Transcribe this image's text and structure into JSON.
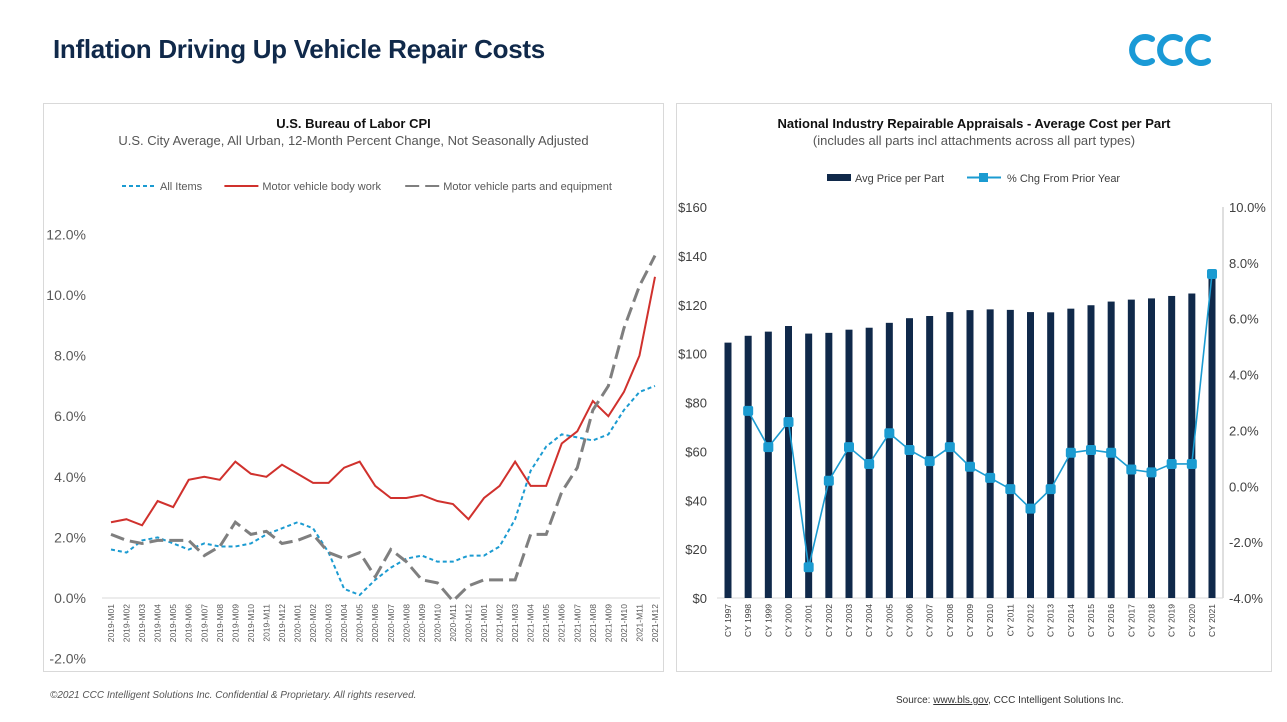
{
  "header": {
    "title": "Inflation Driving Up Vehicle Repair Costs",
    "logo_text": "CCC",
    "logo_color": "#1a9ad6"
  },
  "footer": {
    "copyright": "©2021 CCC Intelligent Solutions Inc. Confidential & Proprietary.  All rights reserved.",
    "source_label": "Source: ",
    "source_link": "www.bls.gov",
    "source_rest": ", CCC Intelligent Solutions Inc."
  },
  "chart_data": [
    {
      "type": "line",
      "title": "U.S. Bureau of Labor CPI",
      "subtitle": "U.S. City Average, All Urban, 12-Month Percent Change, Not Seasonally Adjusted",
      "legend_placement": "top",
      "ylim": [
        -2,
        12
      ],
      "yticks": [
        "-2.0%",
        "0.0%",
        "2.0%",
        "4.0%",
        "6.0%",
        "8.0%",
        "10.0%",
        "12.0%"
      ],
      "grid": false,
      "categories": [
        "2019-M01",
        "2019-M02",
        "2019-M03",
        "2019-M04",
        "2019-M05",
        "2019-M06",
        "2019-M07",
        "2019-M08",
        "2019-M09",
        "2019-M10",
        "2019-M11",
        "2019-M12",
        "2020-M01",
        "2020-M02",
        "2020-M03",
        "2020-M04",
        "2020-M05",
        "2020-M06",
        "2020-M07",
        "2020-M08",
        "2020-M09",
        "2020-M10",
        "2020-M11",
        "2020-M12",
        "2021-M01",
        "2021-M02",
        "2021-M03",
        "2021-M04",
        "2021-M05",
        "2021-M06",
        "2021-M07",
        "2021-M08",
        "2021-M09",
        "2021-M10",
        "2021-M11",
        "2021-M12"
      ],
      "series": [
        {
          "name": "All Items",
          "color": "#1b9bd1",
          "style": "dotted",
          "values": [
            1.6,
            1.5,
            1.9,
            2.0,
            1.8,
            1.6,
            1.8,
            1.7,
            1.7,
            1.8,
            2.1,
            2.3,
            2.5,
            2.3,
            1.5,
            0.3,
            0.1,
            0.6,
            1.0,
            1.3,
            1.4,
            1.2,
            1.2,
            1.4,
            1.4,
            1.7,
            2.6,
            4.2,
            5.0,
            5.4,
            5.3,
            5.2,
            5.4,
            6.2,
            6.8,
            7.0
          ]
        },
        {
          "name": "Motor vehicle body work",
          "color": "#d0312d",
          "style": "solid",
          "values": [
            2.5,
            2.6,
            2.4,
            3.2,
            3.0,
            3.9,
            4.0,
            3.9,
            4.5,
            4.1,
            4.0,
            4.4,
            4.1,
            3.8,
            3.8,
            4.3,
            4.5,
            3.7,
            3.3,
            3.3,
            3.4,
            3.2,
            3.1,
            2.6,
            3.3,
            3.7,
            4.5,
            3.7,
            3.7,
            5.1,
            5.5,
            6.5,
            6.0,
            6.8,
            8.0,
            10.6
          ]
        },
        {
          "name": "Motor vehicle parts and equipment",
          "color": "#7f7f7f",
          "style": "dashed",
          "values": [
            2.1,
            1.9,
            1.8,
            1.9,
            1.9,
            1.9,
            1.4,
            1.7,
            2.5,
            2.1,
            2.2,
            1.8,
            1.9,
            2.1,
            1.5,
            1.3,
            1.5,
            0.7,
            1.6,
            1.2,
            0.6,
            0.5,
            -0.1,
            0.4,
            0.6,
            0.6,
            0.6,
            2.1,
            2.1,
            3.5,
            4.3,
            6.2,
            7.0,
            8.9,
            10.3,
            11.3
          ]
        }
      ]
    },
    {
      "type": "bar",
      "title": "National Industry Repairable Appraisals - Average Cost per Part",
      "subtitle": "(includes all parts incl attachments across all part types)",
      "legend_placement": "top",
      "grid": false,
      "ylim": [
        0,
        160
      ],
      "yticks": [
        "$0",
        "$20",
        "$40",
        "$60",
        "$80",
        "$100",
        "$120",
        "$140",
        "$160"
      ],
      "y2lim": [
        -4,
        10
      ],
      "y2ticks": [
        "-4.0%",
        "-2.0%",
        "0.0%",
        "2.0%",
        "4.0%",
        "6.0%",
        "8.0%",
        "10.0%"
      ],
      "categories": [
        "CY 1997",
        "CY 1998",
        "CY 1999",
        "CY 2000",
        "CY 2001",
        "CY 2002",
        "CY 2003",
        "CY 2004",
        "CY 2005",
        "CY 2006",
        "CY 2007",
        "CY 2008",
        "CY 2009",
        "CY 2010",
        "CY 2011",
        "CY 2012",
        "CY 2013",
        "CY 2014",
        "CY 2015",
        "CY 2016",
        "CY 2017",
        "CY 2018",
        "CY 2019",
        "CY 2020",
        "CY 2021"
      ],
      "series": [
        {
          "name": "Avg Price per Part",
          "type": "bar",
          "axis": "left",
          "color": "#10294a",
          "values": [
            104.5,
            107.3,
            109,
            111.3,
            108.2,
            108.5,
            109.8,
            110.6,
            112.6,
            114.5,
            115.4,
            117,
            117.8,
            118.1,
            117.9,
            117,
            116.9,
            118.4,
            119.8,
            121.3,
            122.1,
            122.6,
            123.6,
            124.6,
            134.1
          ]
        },
        {
          "name": "% Chg From Prior Year",
          "type": "line",
          "axis": "right",
          "color": "#1b9bd1",
          "values": [
            null,
            2.7,
            1.4,
            2.3,
            -2.9,
            0.2,
            1.4,
            0.8,
            1.9,
            1.3,
            0.9,
            1.4,
            0.7,
            0.3,
            -0.1,
            -0.8,
            -0.1,
            1.2,
            1.3,
            1.2,
            0.6,
            0.5,
            0.8,
            0.8,
            7.6
          ]
        }
      ]
    }
  ]
}
